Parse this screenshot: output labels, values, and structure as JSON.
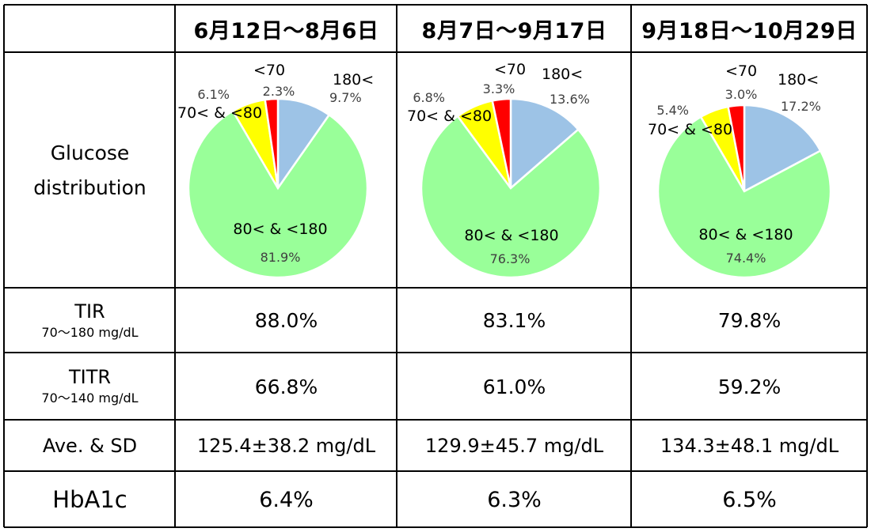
{
  "header": {
    "periods": [
      "6月12日〜8月6日",
      "8月7日〜9月17日",
      "9月18日〜10月29日"
    ]
  },
  "rows": {
    "glucose_label": [
      "Glucose",
      "distribution"
    ],
    "tir": {
      "label": "TIR",
      "sub": "70〜180 mg/dL",
      "values": [
        "88.0%",
        "83.1%",
        "79.8%"
      ]
    },
    "titr": {
      "label": "TITR",
      "sub": "70〜140 mg/dL",
      "values": [
        "66.8%",
        "61.0%",
        "59.2%"
      ]
    },
    "avg": {
      "label": "Ave. & SD",
      "values": [
        "125.4±38.2 mg/dL",
        "129.9±45.7 mg/dL",
        "134.3±48.1 mg/dL"
      ]
    },
    "hba1c": {
      "label": "HbA1c",
      "values": [
        "6.4%",
        "6.3%",
        "6.5%"
      ]
    }
  },
  "colors": {
    "high": "#9dc3e6",
    "range": "#99ff99",
    "low70_80": "#ffff00",
    "very_low": "#ff0000",
    "border": "#000000"
  },
  "chart_data": [
    {
      "type": "pie",
      "categories": [
        "180<",
        "80< & <180",
        "70< & <80",
        "<70"
      ],
      "values": [
        9.7,
        81.9,
        6.1,
        2.3
      ],
      "value_labels": [
        "9.7%",
        "81.9%",
        "6.1%",
        "2.3%"
      ]
    },
    {
      "type": "pie",
      "categories": [
        "180<",
        "80< & <180",
        "70< & <80",
        "<70"
      ],
      "values": [
        13.6,
        76.3,
        6.8,
        3.3
      ],
      "value_labels": [
        "13.6%",
        "76.3%",
        "6.8%",
        "3.3%"
      ]
    },
    {
      "type": "pie",
      "categories": [
        "180<",
        "80< & <180",
        "70< & <80",
        "<70"
      ],
      "values": [
        17.2,
        74.4,
        5.4,
        3.0
      ],
      "value_labels": [
        "17.2%",
        "74.4%",
        "5.4%",
        "3.0%"
      ]
    }
  ]
}
